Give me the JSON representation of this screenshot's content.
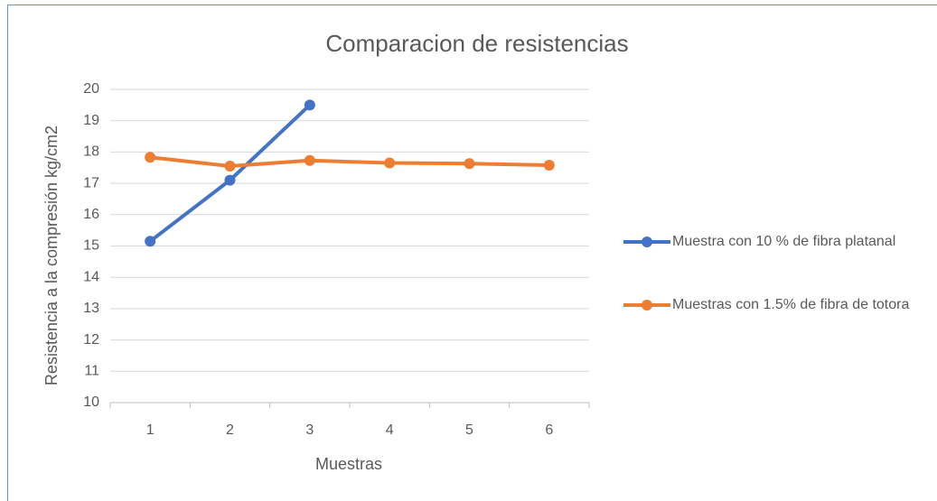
{
  "chart_data": {
    "type": "line",
    "title": "Comparacion de resistencias",
    "x_label": "Muestras",
    "y_label": "Resistencia  a la compresión kg/cm2",
    "categories": [
      "1",
      "2",
      "3",
      "4",
      "5",
      "6"
    ],
    "series": [
      {
        "name": "Muestra con 10 % de fibra platanal",
        "color": "#4472c4",
        "values": [
          15.15,
          17.1,
          19.5,
          null,
          null,
          null
        ]
      },
      {
        "name": "Muestras con 1.5% de fibra de totora",
        "color": "#ed7d31",
        "values": [
          17.83,
          17.55,
          17.73,
          17.65,
          17.63,
          17.58
        ]
      }
    ],
    "ylim": [
      10,
      20
    ],
    "yticks": [
      10,
      11,
      12,
      13,
      14,
      15,
      16,
      17,
      18,
      19,
      20
    ],
    "grid": true,
    "legend": "right"
  }
}
